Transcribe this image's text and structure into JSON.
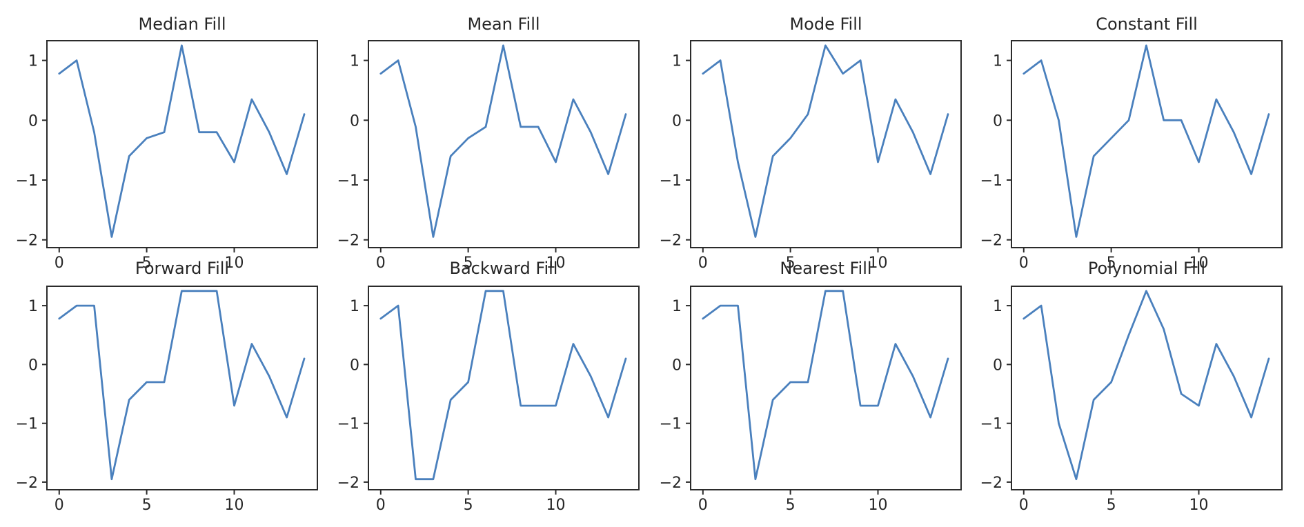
{
  "figure": {
    "background_color": "#ffffff",
    "axis_color": "#2b2b2b",
    "text_color": "#262626",
    "line_color": "#4a80bd",
    "rows": 2,
    "cols": 4
  },
  "chart_data": [
    {
      "type": "line",
      "title": "Median Fill",
      "x": [
        0,
        1,
        2,
        3,
        4,
        5,
        6,
        7,
        8,
        9,
        10,
        11,
        12,
        13,
        14
      ],
      "values": [
        0.78,
        1.0,
        -0.2,
        -1.95,
        -0.6,
        -0.3,
        -0.2,
        1.25,
        -0.2,
        -0.2,
        -0.7,
        0.35,
        -0.2,
        -0.9,
        0.1
      ],
      "x_ticks": [
        0,
        5,
        10
      ],
      "y_ticks": [
        1,
        0,
        -1,
        -2
      ],
      "xlim": [
        -0.7,
        14.75
      ],
      "ylim": [
        -2.13,
        1.33
      ],
      "grid": false,
      "legend": "none"
    },
    {
      "type": "line",
      "title": "Mean Fill",
      "x": [
        0,
        1,
        2,
        3,
        4,
        5,
        6,
        7,
        8,
        9,
        10,
        11,
        12,
        13,
        14
      ],
      "values": [
        0.78,
        1.0,
        -0.11,
        -1.95,
        -0.6,
        -0.3,
        -0.11,
        1.25,
        -0.11,
        -0.11,
        -0.7,
        0.35,
        -0.2,
        -0.9,
        0.1
      ],
      "x_ticks": [
        0,
        5,
        10
      ],
      "y_ticks": [
        1,
        0,
        -1,
        -2
      ],
      "xlim": [
        -0.7,
        14.75
      ],
      "ylim": [
        -2.13,
        1.33
      ],
      "grid": false,
      "legend": "none"
    },
    {
      "type": "line",
      "title": "Mode Fill",
      "x": [
        0,
        1,
        2,
        3,
        4,
        5,
        6,
        7,
        8,
        9,
        10,
        11,
        12,
        13,
        14
      ],
      "values": [
        0.78,
        1.0,
        -0.7,
        -1.95,
        -0.6,
        -0.3,
        0.1,
        1.25,
        0.78,
        1.0,
        -0.7,
        0.35,
        -0.2,
        -0.9,
        0.1
      ],
      "x_ticks": [
        0,
        5,
        10
      ],
      "y_ticks": [
        1,
        0,
        -1,
        -2
      ],
      "xlim": [
        -0.7,
        14.75
      ],
      "ylim": [
        -2.13,
        1.33
      ],
      "grid": false,
      "legend": "none"
    },
    {
      "type": "line",
      "title": "Constant Fill",
      "x": [
        0,
        1,
        2,
        3,
        4,
        5,
        6,
        7,
        8,
        9,
        10,
        11,
        12,
        13,
        14
      ],
      "values": [
        0.78,
        1.0,
        0.0,
        -1.95,
        -0.6,
        -0.3,
        0.0,
        1.25,
        0.0,
        0.0,
        -0.7,
        0.35,
        -0.2,
        -0.9,
        0.1
      ],
      "x_ticks": [
        0,
        5,
        10
      ],
      "y_ticks": [
        1,
        0,
        -1,
        -2
      ],
      "xlim": [
        -0.7,
        14.75
      ],
      "ylim": [
        -2.13,
        1.33
      ],
      "grid": false,
      "legend": "none"
    },
    {
      "type": "line",
      "title": "Forward Fill",
      "x": [
        0,
        1,
        2,
        3,
        4,
        5,
        6,
        7,
        8,
        9,
        10,
        11,
        12,
        13,
        14
      ],
      "values": [
        0.78,
        1.0,
        1.0,
        -1.95,
        -0.6,
        -0.3,
        -0.3,
        1.25,
        1.25,
        1.25,
        -0.7,
        0.35,
        -0.2,
        -0.9,
        0.1
      ],
      "x_ticks": [
        0,
        5,
        10
      ],
      "y_ticks": [
        1,
        0,
        -1,
        -2
      ],
      "xlim": [
        -0.7,
        14.75
      ],
      "ylim": [
        -2.13,
        1.33
      ],
      "grid": false,
      "legend": "none"
    },
    {
      "type": "line",
      "title": "Backward Fill",
      "x": [
        0,
        1,
        2,
        3,
        4,
        5,
        6,
        7,
        8,
        9,
        10,
        11,
        12,
        13,
        14
      ],
      "values": [
        0.78,
        1.0,
        -1.95,
        -1.95,
        -0.6,
        -0.3,
        1.25,
        1.25,
        -0.7,
        -0.7,
        -0.7,
        0.35,
        -0.2,
        -0.9,
        0.1
      ],
      "x_ticks": [
        0,
        5,
        10
      ],
      "y_ticks": [
        1,
        0,
        -1,
        -2
      ],
      "xlim": [
        -0.7,
        14.75
      ],
      "ylim": [
        -2.13,
        1.33
      ],
      "grid": false,
      "legend": "none"
    },
    {
      "type": "line",
      "title": "Nearest Fill",
      "x": [
        0,
        1,
        2,
        3,
        4,
        5,
        6,
        7,
        8,
        9,
        10,
        11,
        12,
        13,
        14
      ],
      "values": [
        0.78,
        1.0,
        1.0,
        -1.95,
        -0.6,
        -0.3,
        -0.3,
        1.25,
        1.25,
        -0.7,
        -0.7,
        0.35,
        -0.2,
        -0.9,
        0.1
      ],
      "x_ticks": [
        0,
        5,
        10
      ],
      "y_ticks": [
        1,
        0,
        -1,
        -2
      ],
      "xlim": [
        -0.7,
        14.75
      ],
      "ylim": [
        -2.13,
        1.33
      ],
      "grid": false,
      "legend": "none"
    },
    {
      "type": "line",
      "title": "Polynomial Fill",
      "x": [
        0,
        1,
        2,
        3,
        4,
        5,
        6,
        7,
        8,
        9,
        10,
        11,
        12,
        13,
        14
      ],
      "values": [
        0.78,
        1.0,
        -1.0,
        -1.95,
        -0.6,
        -0.3,
        0.5,
        1.25,
        0.6,
        -0.5,
        -0.7,
        0.35,
        -0.2,
        -0.9,
        0.1
      ],
      "x_ticks": [
        0,
        5,
        10
      ],
      "y_ticks": [
        1,
        0,
        -1,
        -2
      ],
      "xlim": [
        -0.7,
        14.75
      ],
      "ylim": [
        -2.13,
        1.33
      ],
      "grid": false,
      "legend": "none"
    }
  ]
}
